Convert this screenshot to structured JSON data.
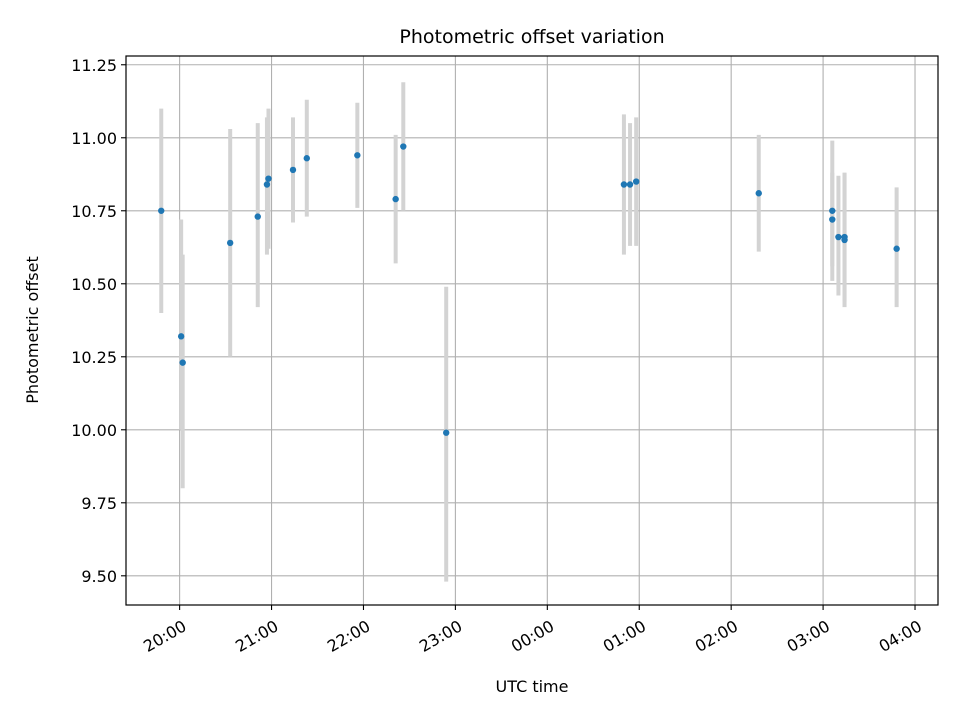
{
  "chart_data": {
    "type": "scatter",
    "title": "Photometric offset variation",
    "xlabel": "UTC time",
    "ylabel": "Photometric offset",
    "x_unit": "UTC hours, night starting 19:00",
    "xlim": [
      "19:25",
      "04:15"
    ],
    "ylim": [
      9.4,
      11.28
    ],
    "x_ticks": [
      "20:00",
      "21:00",
      "22:00",
      "23:00",
      "00:00",
      "01:00",
      "02:00",
      "03:00",
      "04:00"
    ],
    "y_ticks": [
      "9.50",
      "9.75",
      "10.00",
      "10.25",
      "10.50",
      "10.75",
      "11.00",
      "11.25"
    ],
    "grid": true,
    "colors": {
      "point": "#1f77b4",
      "errorbar": "#d3d3d3",
      "grid": "#b0b0b0"
    },
    "points": [
      {
        "x": "19:48",
        "y": 10.75,
        "low": 10.4,
        "high": 11.1
      },
      {
        "x": "20:01",
        "y": 10.32,
        "low": 10.0,
        "high": 10.72
      },
      {
        "x": "20:02",
        "y": 10.23,
        "low": 9.8,
        "high": 10.6
      },
      {
        "x": "20:33",
        "y": 10.64,
        "low": 10.25,
        "high": 11.03
      },
      {
        "x": "20:51",
        "y": 10.73,
        "low": 10.42,
        "high": 11.05
      },
      {
        "x": "20:57",
        "y": 10.84,
        "low": 10.6,
        "high": 11.07
      },
      {
        "x": "20:58",
        "y": 10.86,
        "low": 10.62,
        "high": 11.1
      },
      {
        "x": "21:14",
        "y": 10.89,
        "low": 10.71,
        "high": 11.07
      },
      {
        "x": "21:23",
        "y": 10.93,
        "low": 10.73,
        "high": 11.13
      },
      {
        "x": "21:56",
        "y": 10.94,
        "low": 10.76,
        "high": 11.12
      },
      {
        "x": "22:21",
        "y": 10.79,
        "low": 10.57,
        "high": 11.01
      },
      {
        "x": "22:26",
        "y": 10.97,
        "low": 10.75,
        "high": 11.19
      },
      {
        "x": "22:54",
        "y": 9.99,
        "low": 9.48,
        "high": 10.49
      },
      {
        "x": "00:50",
        "y": 10.84,
        "low": 10.6,
        "high": 11.08
      },
      {
        "x": "00:54",
        "y": 10.84,
        "low": 10.63,
        "high": 11.05
      },
      {
        "x": "00:58",
        "y": 10.85,
        "low": 10.63,
        "high": 11.07
      },
      {
        "x": "02:18",
        "y": 10.81,
        "low": 10.61,
        "high": 11.01
      },
      {
        "x": "03:06",
        "y": 10.75,
        "low": 10.51,
        "high": 10.99
      },
      {
        "x": "03:06",
        "y": 10.72,
        "low": 10.56,
        "high": 10.88
      },
      {
        "x": "03:10",
        "y": 10.66,
        "low": 10.46,
        "high": 10.87
      },
      {
        "x": "03:14",
        "y": 10.65,
        "low": 10.42,
        "high": 10.88
      },
      {
        "x": "03:14",
        "y": 10.66,
        "low": 10.44,
        "high": 10.88
      },
      {
        "x": "03:48",
        "y": 10.62,
        "low": 10.42,
        "high": 10.83
      }
    ]
  }
}
